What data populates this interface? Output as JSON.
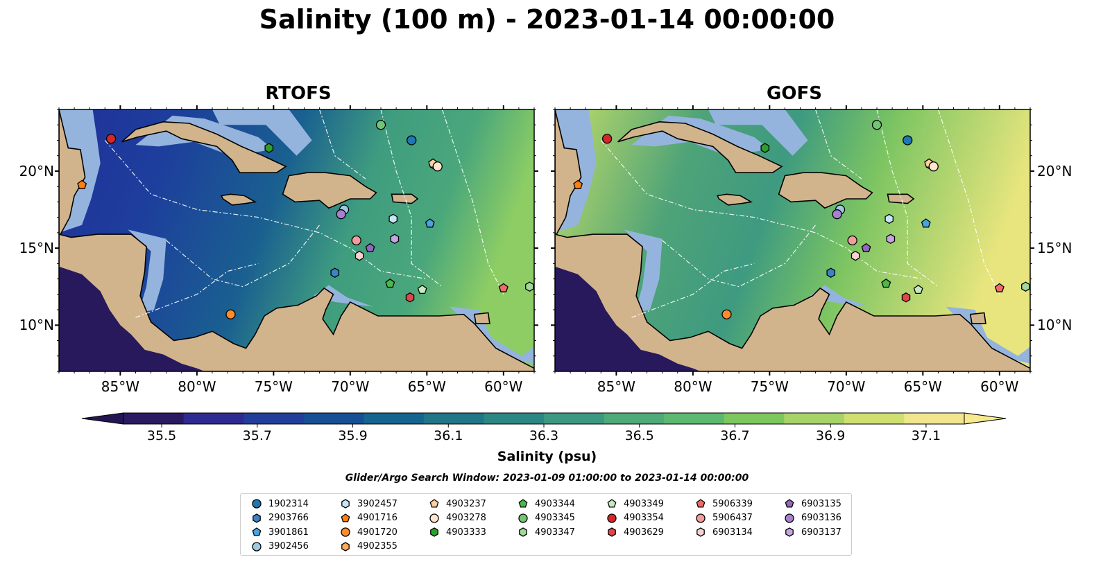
{
  "title": "Salinity (100 m) - 2023-01-14 00:00:00",
  "panels": [
    {
      "title": "RTOFS",
      "field": "rtofs"
    },
    {
      "title": "GOFS",
      "field": "gofs"
    }
  ],
  "map_extent": {
    "lon_min": -89,
    "lon_max": -58,
    "lat_min": 7,
    "lat_max": 24
  },
  "lon_ticks": [
    {
      "value": -85,
      "label": "85°W"
    },
    {
      "value": -80,
      "label": "80°W"
    },
    {
      "value": -75,
      "label": "75°W"
    },
    {
      "value": -70,
      "label": "70°W"
    },
    {
      "value": -65,
      "label": "65°W"
    },
    {
      "value": -60,
      "label": "60°W"
    }
  ],
  "lat_ticks": [
    {
      "value": 20,
      "label": "20°N"
    },
    {
      "value": 15,
      "label": "15°N"
    },
    {
      "value": 10,
      "label": "10°N"
    }
  ],
  "colorbar": {
    "label": "Salinity (psu)",
    "min": 35.42,
    "max": 37.18,
    "ticks": [
      "35.5",
      "35.7",
      "35.9",
      "36.1",
      "36.3",
      "36.5",
      "36.7",
      "36.9",
      "37.1"
    ],
    "colors": [
      "#2a1a62",
      "#2d2a92",
      "#223e9c",
      "#174f97",
      "#166590",
      "#217687",
      "#2b8784",
      "#3b9982",
      "#4eaa79",
      "#5db96f",
      "#7dc75f",
      "#a7d466",
      "#cfe070",
      "#f1e68b"
    ]
  },
  "colors": {
    "land": "#d2b48c",
    "shelf": "#94b4de",
    "deep_ocean": "#28185c"
  },
  "search_window": "Glider/Argo Search Window: 2023-01-09 01:00:00 to 2023-01-14 00:00:00",
  "floats": [
    {
      "id": "1902314",
      "marker": "circle",
      "color": "#1f77b4",
      "lon": -66.0,
      "lat": 22.0
    },
    {
      "id": "2903766",
      "marker": "hexagon",
      "color": "#3b83c4",
      "lon": -71.0,
      "lat": 13.4
    },
    {
      "id": "3901861",
      "marker": "pentagon",
      "color": "#4aa3df",
      "lon": -64.8,
      "lat": 16.6
    },
    {
      "id": "3902456",
      "marker": "circle",
      "color": "#9ecae1",
      "lon": -70.4,
      "lat": 17.5
    },
    {
      "id": "3902457",
      "marker": "hexagon",
      "color": "#c6e6f7",
      "lon": -67.2,
      "lat": 16.9
    },
    {
      "id": "4901716",
      "marker": "pentagon",
      "color": "#ff7f0e",
      "lon": -87.5,
      "lat": 19.1
    },
    {
      "id": "4901720",
      "marker": "circle",
      "color": "#ff8c2a",
      "lon": -77.8,
      "lat": 10.7
    },
    {
      "id": "4902355",
      "marker": "hexagon",
      "color": "#ffaa55",
      "lon": -64.5,
      "lat": 20.4
    },
    {
      "id": "4903237",
      "marker": "pentagon",
      "color": "#ffcf9f",
      "lon": -64.6,
      "lat": 20.5
    },
    {
      "id": "4903278",
      "marker": "circle",
      "color": "#ffe5cc",
      "lon": -64.3,
      "lat": 20.3
    },
    {
      "id": "4903333",
      "marker": "hexagon",
      "color": "#2ca02c",
      "lon": -75.3,
      "lat": 21.5
    },
    {
      "id": "4903344",
      "marker": "pentagon",
      "color": "#4cb84c",
      "lon": -67.4,
      "lat": 12.7
    },
    {
      "id": "4903345",
      "marker": "circle",
      "color": "#74c476",
      "lon": -68.0,
      "lat": 23.0
    },
    {
      "id": "4903347",
      "marker": "hexagon",
      "color": "#a1d99b",
      "lon": -58.3,
      "lat": 12.5
    },
    {
      "id": "4903349",
      "marker": "pentagon",
      "color": "#c7e9c0",
      "lon": -65.3,
      "lat": 12.3
    },
    {
      "id": "4903354",
      "marker": "circle",
      "color": "#d62728",
      "lon": -85.6,
      "lat": 22.1
    },
    {
      "id": "4903629",
      "marker": "hexagon",
      "color": "#e0474a",
      "lon": -66.1,
      "lat": 11.8
    },
    {
      "id": "5906339",
      "marker": "pentagon",
      "color": "#ef6a6b",
      "lon": -60.0,
      "lat": 12.4
    },
    {
      "id": "5906437",
      "marker": "circle",
      "color": "#f29c9c",
      "lon": -69.6,
      "lat": 15.5
    },
    {
      "id": "6903134",
      "marker": "hexagon",
      "color": "#fbd0d0",
      "lon": -69.4,
      "lat": 14.5
    },
    {
      "id": "6903135",
      "marker": "pentagon",
      "color": "#9467bd",
      "lon": -68.7,
      "lat": 15.0
    },
    {
      "id": "6903136",
      "marker": "circle",
      "color": "#a87fd1",
      "lon": -70.6,
      "lat": 17.2
    },
    {
      "id": "6903137",
      "marker": "hexagon",
      "color": "#c4a5e3",
      "lon": -67.1,
      "lat": 15.6
    }
  ]
}
